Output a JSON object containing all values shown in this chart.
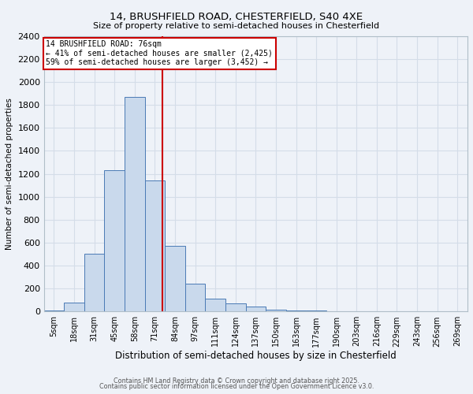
{
  "title1": "14, BRUSHFIELD ROAD, CHESTERFIELD, S40 4XE",
  "title2": "Size of property relative to semi-detached houses in Chesterfield",
  "xlabel": "Distribution of semi-detached houses by size in Chesterfield",
  "ylabel": "Number of semi-detached properties",
  "categories": [
    "5sqm",
    "18sqm",
    "31sqm",
    "45sqm",
    "58sqm",
    "71sqm",
    "84sqm",
    "97sqm",
    "111sqm",
    "124sqm",
    "137sqm",
    "150sqm",
    "163sqm",
    "177sqm",
    "190sqm",
    "203sqm",
    "216sqm",
    "229sqm",
    "243sqm",
    "256sqm",
    "269sqm"
  ],
  "values": [
    10,
    80,
    500,
    1230,
    1870,
    1140,
    575,
    240,
    115,
    70,
    45,
    15,
    10,
    10,
    5,
    5,
    0,
    0,
    0,
    0,
    0
  ],
  "bar_color": "#c9d9ec",
  "bar_edge_color": "#4a7ab5",
  "grid_color": "#d4dde8",
  "background_color": "#eef2f8",
  "vline_x": 5.38,
  "vline_color": "#cc0000",
  "annotation_title": "14 BRUSHFIELD ROAD: 76sqm",
  "annotation_line1": "← 41% of semi-detached houses are smaller (2,425)",
  "annotation_line2": "59% of semi-detached houses are larger (3,452) →",
  "annotation_box_color": "white",
  "annotation_box_edge": "#cc0000",
  "ylim": [
    0,
    2400
  ],
  "yticks": [
    0,
    200,
    400,
    600,
    800,
    1000,
    1200,
    1400,
    1600,
    1800,
    2000,
    2200,
    2400
  ],
  "footer1": "Contains HM Land Registry data © Crown copyright and database right 2025.",
  "footer2": "Contains public sector information licensed under the Open Government Licence v3.0."
}
